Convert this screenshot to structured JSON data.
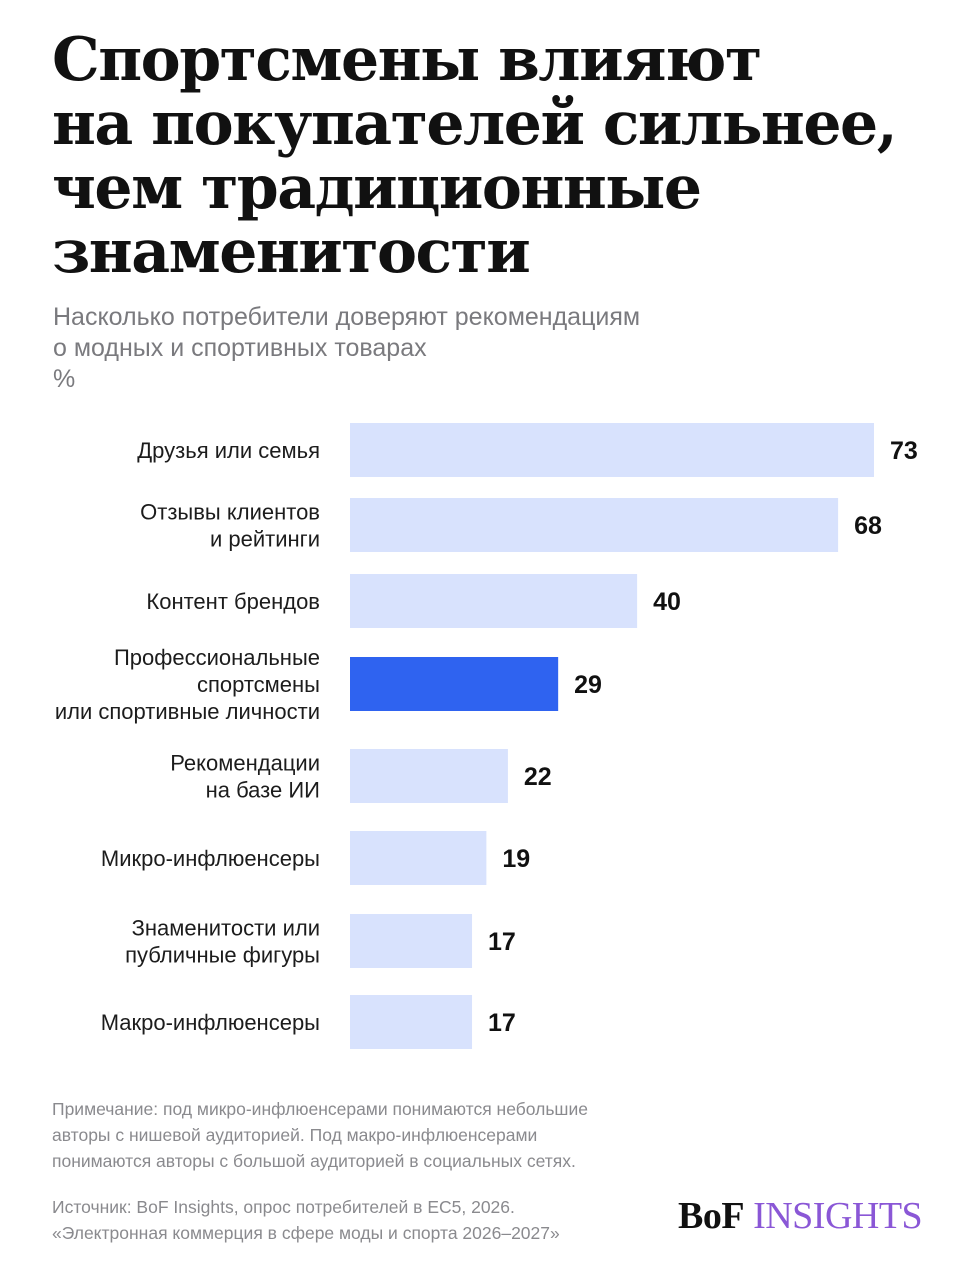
{
  "chart_data": {
    "type": "bar",
    "orientation": "horizontal",
    "title_lines": [
      "Спортсмены влияют",
      "на покупателей сильнее,",
      "чем традиционные",
      "знаменитости"
    ],
    "subtitle_lines": [
      "Насколько потребители доверяют рекомендациям",
      "о модных и спортивных товарах",
      "%"
    ],
    "categories": [
      [
        "Друзья или семья"
      ],
      [
        "Отзывы клиентов",
        "и рейтинги"
      ],
      [
        "Контент брендов"
      ],
      [
        "Профессиональные",
        "спортсмены",
        "или спортивные личности"
      ],
      [
        "Рекомендации",
        "на базе ИИ"
      ],
      [
        "Микро-инфлюенсеры"
      ],
      [
        "Знаменитости или",
        "публичные фигуры"
      ],
      [
        "Макро-инфлюенсеры"
      ]
    ],
    "values": [
      73,
      68,
      40,
      29,
      22,
      19,
      17,
      17
    ],
    "highlight_index": 3,
    "colors": {
      "bar": "#d8e2fd",
      "highlight": "#2f63f0"
    },
    "xlim": [
      0,
      73
    ],
    "grid": false,
    "legend": "none"
  },
  "note_lines": [
    "Примечание: под микро-инфлюенсерами понимаются небольшие",
    "авторы с нишевой аудиторией. Под макро-инфлюенсерами",
    "понимаются авторы с большой аудиторией в социальных сетях."
  ],
  "source_lines": [
    "Источник: BoF Insights, опрос потребителей в ЕС5, 2026.",
    "«Электронная коммерция в сфере моды и спорта 2026–2027»"
  ],
  "brand": {
    "bof": "BoF",
    "insights": "INSIGHTS"
  }
}
